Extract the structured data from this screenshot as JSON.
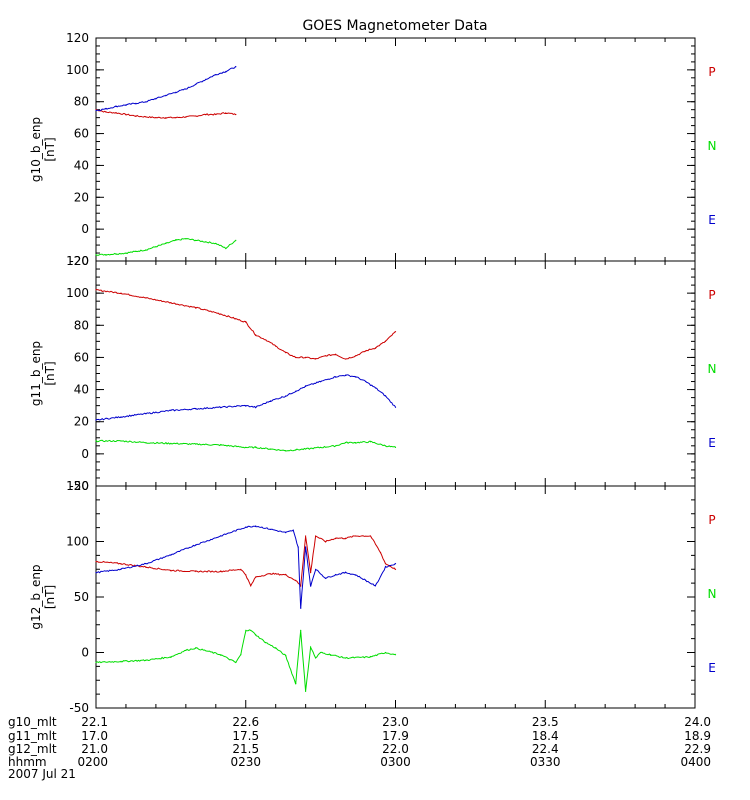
{
  "chart_data": {
    "title": "GOES Magnetometer Data",
    "colors": {
      "P": "#cc0000",
      "N": "#00dd00",
      "E": "#0000cc",
      "axis": "#000000"
    },
    "panels": [
      {
        "type": "line",
        "ylabel": "g10_b_enp",
        "yunit": "[nT]",
        "ylim": [
          -20,
          120
        ],
        "yticks": [
          -20,
          0,
          20,
          40,
          60,
          80,
          100,
          120
        ],
        "legend": [
          "P",
          "N",
          "E"
        ],
        "series": [
          {
            "name": "P",
            "key": "P",
            "x": [
              0,
              2,
              4,
              6,
              8,
              10,
              12,
              14,
              16,
              18,
              20,
              22,
              24,
              26,
              28
            ],
            "values": [
              75,
              73.5,
              73,
              72,
              71,
              70.5,
              70,
              70,
              70,
              70.5,
              71,
              72,
              72,
              73,
              72
            ]
          },
          {
            "name": "N",
            "key": "N",
            "x": [
              0,
              2,
              4,
              6,
              8,
              10,
              12,
              14,
              16,
              18,
              20,
              22,
              24,
              26,
              28
            ],
            "values": [
              -16,
              -16,
              -15.5,
              -15,
              -14,
              -13,
              -11,
              -9,
              -7,
              -6,
              -7,
              -8,
              -9,
              -12,
              -7
            ]
          },
          {
            "name": "E",
            "key": "E",
            "x": [
              0,
              2,
              4,
              6,
              8,
              10,
              12,
              14,
              16,
              18,
              20,
              22,
              24,
              26,
              28
            ],
            "values": [
              74.5,
              75.5,
              77,
              78,
              79,
              80,
              82,
              84,
              86,
              88,
              91,
              94,
              97,
              99,
              102
            ]
          }
        ]
      },
      {
        "type": "line",
        "ylabel": "g11_b_enp",
        "yunit": "[nT]",
        "ylim": [
          -20,
          120
        ],
        "yticks": [
          -20,
          0,
          20,
          40,
          60,
          80,
          100,
          120
        ],
        "legend": [
          "P",
          "N",
          "E"
        ],
        "series": [
          {
            "name": "P",
            "key": "P",
            "x": [
              0,
              5,
              10,
              15,
              20,
              25,
              28,
              30,
              32,
              34,
              36,
              38,
              40,
              42,
              44,
              46,
              48,
              50,
              52,
              54,
              56,
              58,
              60
            ],
            "values": [
              102,
              100,
              97,
              94,
              91,
              87,
              84,
              82,
              74,
              71,
              67,
              63,
              60,
              60,
              59,
              61,
              62,
              59,
              61,
              64,
              66,
              70,
              76
            ]
          },
          {
            "name": "N",
            "key": "N",
            "x": [
              0,
              5,
              10,
              15,
              20,
              25,
              30,
              32,
              35,
              38,
              40,
              42,
              45,
              48,
              50,
              52,
              55,
              58,
              60
            ],
            "values": [
              8,
              8,
              7,
              6.5,
              6,
              5.5,
              4,
              4,
              3,
              2,
              2.5,
              3,
              4,
              5,
              7,
              7,
              7.5,
              5,
              4
            ]
          },
          {
            "name": "E",
            "key": "E",
            "x": [
              0,
              5,
              10,
              15,
              20,
              25,
              30,
              32,
              35,
              38,
              40,
              42,
              45,
              48,
              50,
              52,
              54,
              56,
              58,
              60
            ],
            "values": [
              21,
              23,
              25,
              27,
              28,
              29,
              30,
              29,
              33,
              36,
              39,
              42,
              45,
              48,
              49,
              48,
              45,
              41,
              36,
              29
            ]
          }
        ]
      },
      {
        "type": "line",
        "ylabel": "g12_b_enp",
        "yunit": "[nT]",
        "ylim": [
          -50,
          150
        ],
        "yticks": [
          -50,
          0,
          50,
          100,
          150
        ],
        "legend": [
          "P",
          "N",
          "E"
        ],
        "series": [
          {
            "name": "P",
            "key": "P",
            "x": [
              0,
              5,
              10,
              15,
              20,
              25,
              29,
              30,
              31,
              32,
              35,
              38,
              40,
              41,
              42,
              43,
              44,
              46,
              48,
              50,
              52,
              55,
              57,
              58,
              60
            ],
            "values": [
              82,
              80,
              77,
              74,
              73,
              73,
              75,
              70,
              60,
              68,
              71,
              70,
              65,
              60,
              105,
              72,
              105,
              100,
              103,
              103,
              105,
              105,
              90,
              80,
              75
            ]
          },
          {
            "name": "N",
            "key": "N",
            "x": [
              0,
              5,
              10,
              15,
              18,
              20,
              25,
              28,
              29,
              30,
              31,
              32,
              34,
              36,
              38,
              40,
              41,
              42,
              43,
              44,
              45,
              47,
              50,
              55,
              58,
              60
            ],
            "values": [
              -9,
              -8,
              -7,
              -4,
              2,
              4,
              -2,
              -9,
              -2,
              20,
              20,
              16,
              9,
              4,
              -3,
              -28,
              20,
              -35,
              5,
              -5,
              0,
              -2,
              -5,
              -4,
              0,
              -2
            ]
          },
          {
            "name": "E",
            "key": "E",
            "x": [
              0,
              5,
              10,
              15,
              20,
              25,
              30,
              32,
              35,
              38,
              39.5,
              40.5,
              41,
              42,
              43,
              44,
              46,
              48,
              50,
              52,
              54,
              56,
              58,
              60
            ],
            "values": [
              72,
              75,
              80,
              88,
              97,
              105,
              113,
              114,
              111,
              108,
              110,
              95,
              40,
              95,
              60,
              75,
              67,
              70,
              72,
              70,
              65,
              60,
              77,
              80
            ]
          }
        ]
      }
    ],
    "xaxis": {
      "xlim": [
        0,
        120
      ],
      "tick_positions": [
        0,
        30,
        60,
        90,
        120
      ],
      "rows": [
        {
          "label": "g10_mlt",
          "values": [
            "22.1",
            "22.6",
            "23.0",
            "23.5",
            "24.0"
          ]
        },
        {
          "label": "g11_mlt",
          "values": [
            "17.0",
            "17.5",
            "17.9",
            "18.4",
            "18.9"
          ]
        },
        {
          "label": "g12_mlt",
          "values": [
            "21.0",
            "21.5",
            "22.0",
            "22.4",
            "22.9"
          ]
        },
        {
          "label": "hhmm",
          "values": [
            "0200",
            "0230",
            "0300",
            "0330",
            "0400"
          ]
        }
      ],
      "date": "2007 Jul 21"
    }
  }
}
